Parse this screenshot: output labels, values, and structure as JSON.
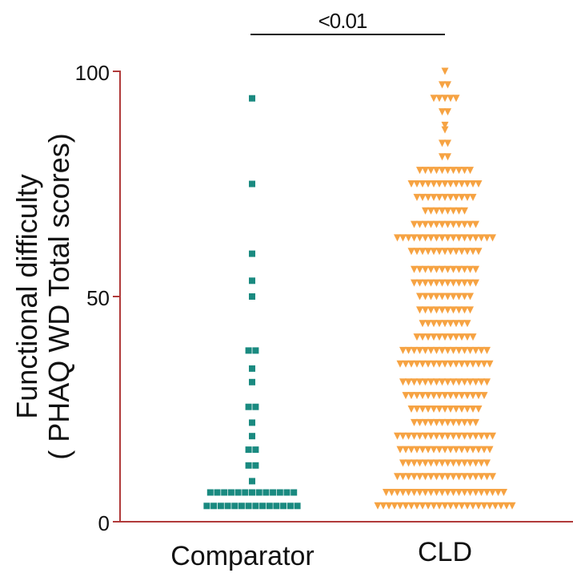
{
  "chart_data": {
    "type": "scatter",
    "ylabel_line1": "Functional difficulty",
    "ylabel_line2": "( PHAQ WD Total scores)",
    "categories": [
      "Comparator",
      "CLD"
    ],
    "ylim": [
      0,
      100
    ],
    "yticks": [
      "0",
      "50",
      "100"
    ],
    "significance": "<0.01",
    "colors": {
      "axis": "#b03a3a",
      "comparator": "#1a8a80",
      "cld": "#f6a343",
      "text": "#111111"
    },
    "series": [
      {
        "category": "Comparator",
        "marker": "square",
        "rows": [
          {
            "y": 94,
            "n": 1
          },
          {
            "y": 75,
            "n": 1
          },
          {
            "y": 59.5,
            "n": 1
          },
          {
            "y": 53.5,
            "n": 1
          },
          {
            "y": 50,
            "n": 1
          },
          {
            "y": 38,
            "n": 2
          },
          {
            "y": 34,
            "n": 1
          },
          {
            "y": 31,
            "n": 1
          },
          {
            "y": 25.5,
            "n": 2
          },
          {
            "y": 22,
            "n": 1
          },
          {
            "y": 19,
            "n": 1
          },
          {
            "y": 16,
            "n": 2
          },
          {
            "y": 12.5,
            "n": 2
          },
          {
            "y": 9,
            "n": 1
          },
          {
            "y": 6.5,
            "n": 13
          },
          {
            "y": 3.5,
            "n": 14
          }
        ]
      },
      {
        "category": "CLD",
        "marker": "triangle-down",
        "rows": [
          {
            "y": 100,
            "n": 1
          },
          {
            "y": 97,
            "n": 2
          },
          {
            "y": 94,
            "n": 5
          },
          {
            "y": 91,
            "n": 2
          },
          {
            "y": 88,
            "n": 1
          },
          {
            "y": 87,
            "n": 1
          },
          {
            "y": 84,
            "n": 2
          },
          {
            "y": 81,
            "n": 2
          },
          {
            "y": 78,
            "n": 10
          },
          {
            "y": 75,
            "n": 13
          },
          {
            "y": 72,
            "n": 11
          },
          {
            "y": 69,
            "n": 8
          },
          {
            "y": 66,
            "n": 12
          },
          {
            "y": 63,
            "n": 18
          },
          {
            "y": 60,
            "n": 13
          },
          {
            "y": 56,
            "n": 12
          },
          {
            "y": 53,
            "n": 12
          },
          {
            "y": 50,
            "n": 10
          },
          {
            "y": 47,
            "n": 10
          },
          {
            "y": 44,
            "n": 9
          },
          {
            "y": 41,
            "n": 11
          },
          {
            "y": 38,
            "n": 16
          },
          {
            "y": 35,
            "n": 17
          },
          {
            "y": 31,
            "n": 16
          },
          {
            "y": 28,
            "n": 15
          },
          {
            "y": 25,
            "n": 13
          },
          {
            "y": 22,
            "n": 12
          },
          {
            "y": 19,
            "n": 18
          },
          {
            "y": 16,
            "n": 17
          },
          {
            "y": 13,
            "n": 16
          },
          {
            "y": 10,
            "n": 18
          },
          {
            "y": 6.5,
            "n": 22
          },
          {
            "y": 3.5,
            "n": 25
          }
        ]
      }
    ]
  }
}
